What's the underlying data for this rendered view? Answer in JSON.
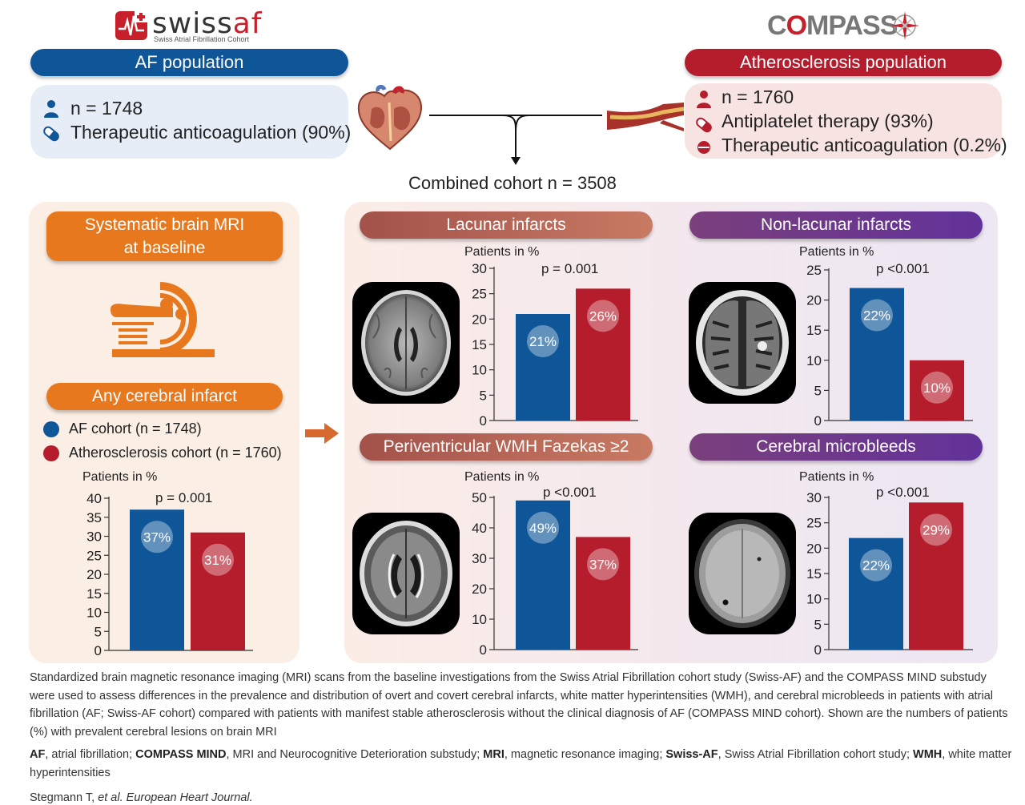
{
  "logos": {
    "swissaf_word_a": "swiss",
    "swissaf_word_b": "af",
    "swissaf_sub": "Swiss Atrial Fibrillation Cohort",
    "compass_word_a": "C",
    "compass_word_b": "O",
    "compass_word_c": "MPASS"
  },
  "af_population": {
    "title": "AF population",
    "n": "n = 1748",
    "therapy": "Therapeutic anticoagulation (90%)"
  },
  "ath_population": {
    "title": "Atherosclerosis population",
    "n": "n = 1760",
    "therapy1": "Antiplatelet therapy (93%)",
    "therapy2": "Therapeutic anticoagulation (0.2%)"
  },
  "combined": "Combined cohort n = 3508",
  "left": {
    "mri_line1": "Systematic brain MRI",
    "mri_line2": "at baseline",
    "any_title": "Any cerebral infarct",
    "legend_af_bold": "AF cohort",
    "legend_af_n": " (n = 1748)",
    "legend_ath_bold": "Atherosclerosis cohort",
    "legend_ath_n": " (n = 1760)"
  },
  "panels": {
    "lacunar": "Lacunar infarcts",
    "nonlacunar": "Non-lacunar infarcts",
    "wmh": "Periventricular WMH Fazekas ≥2",
    "microbleeds": "Cerebral microbleeds"
  },
  "colors": {
    "af": "#0f5698",
    "ath": "#b51d2c",
    "orange": "#e8781e"
  },
  "chart_data": [
    {
      "id": "any",
      "type": "bar",
      "title": "Any cerebral infarct",
      "ylabel": "Patients in %",
      "ylim": [
        0,
        40
      ],
      "ticks": [
        0,
        5,
        10,
        15,
        20,
        25,
        30,
        35,
        40
      ],
      "pvalue": "p = 0.001",
      "series": [
        {
          "name": "AF cohort",
          "value": 37,
          "label": "37%"
        },
        {
          "name": "Atherosclerosis cohort",
          "value": 31,
          "label": "31%"
        }
      ]
    },
    {
      "id": "lacunar",
      "type": "bar",
      "title": "Lacunar infarcts",
      "ylabel": "Patients in %",
      "ylim": [
        0,
        30
      ],
      "ticks": [
        0,
        5,
        10,
        15,
        20,
        25,
        30
      ],
      "pvalue": "p = 0.001",
      "series": [
        {
          "name": "AF cohort",
          "value": 21,
          "label": "21%"
        },
        {
          "name": "Atherosclerosis cohort",
          "value": 26,
          "label": "26%"
        }
      ]
    },
    {
      "id": "nonlacunar",
      "type": "bar",
      "title": "Non-lacunar infarcts",
      "ylabel": "Patients in %",
      "ylim": [
        0,
        25
      ],
      "ticks": [
        0,
        5,
        10,
        15,
        20,
        25
      ],
      "pvalue": "p <0.001",
      "series": [
        {
          "name": "AF cohort",
          "value": 22,
          "label": "22%"
        },
        {
          "name": "Atherosclerosis cohort",
          "value": 10,
          "label": "10%"
        }
      ]
    },
    {
      "id": "wmh",
      "type": "bar",
      "title": "Periventricular WMH Fazekas ≥2",
      "ylabel": "Patients in %",
      "ylim": [
        0,
        50
      ],
      "ticks": [
        0,
        10,
        20,
        30,
        40,
        50
      ],
      "pvalue": "p <0.001",
      "series": [
        {
          "name": "AF cohort",
          "value": 49,
          "label": "49%"
        },
        {
          "name": "Atherosclerosis cohort",
          "value": 37,
          "label": "37%"
        }
      ]
    },
    {
      "id": "microbleeds",
      "type": "bar",
      "title": "Cerebral microbleeds",
      "ylabel": "Patients in %",
      "ylim": [
        0,
        30
      ],
      "ticks": [
        0,
        5,
        10,
        15,
        20,
        25,
        30
      ],
      "pvalue": "p <0.001",
      "series": [
        {
          "name": "AF cohort",
          "value": 22,
          "label": "22%"
        },
        {
          "name": "Atherosclerosis cohort",
          "value": 29,
          "label": "29%"
        }
      ]
    }
  ],
  "caption": {
    "para1": "Standardized brain magnetic resonance imaging (MRI) scans from the baseline investigations from the Swiss Atrial Fibrillation cohort study (Swiss-AF) and the COMPASS MIND substudy were used to assess differences in the prevalence and distribution of overt and covert cerebral infarcts, white matter hyperintensities (WMH), and cerebral microbleeds in patients with atrial fibrillation (AF; Swiss-AF cohort) compared with patients with manifest stable atherosclerosis without the clinical diagnosis of AF (COMPASS MIND cohort). Shown are the numbers of patients (%) with prevalent cerebral lesions on brain MRI",
    "abbr1_term": "AF",
    "abbr1_def": ", atrial fibrillation; ",
    "abbr2_term": "COMPASS MIND",
    "abbr2_def": ", MRI and Neurocognitive Deterioration substudy; ",
    "abbr3_term": "MRI",
    "abbr3_def": ", magnetic resonance imaging; ",
    "abbr4_term": "Swiss-AF",
    "abbr4_def": ", Swiss Atrial Fibrillation cohort study; ",
    "abbr5_term": "WMH",
    "abbr5_def": ", white matter hyperintensities",
    "cite_author": "Stegmann T, ",
    "cite_journal": "et al. European Heart Journal."
  }
}
